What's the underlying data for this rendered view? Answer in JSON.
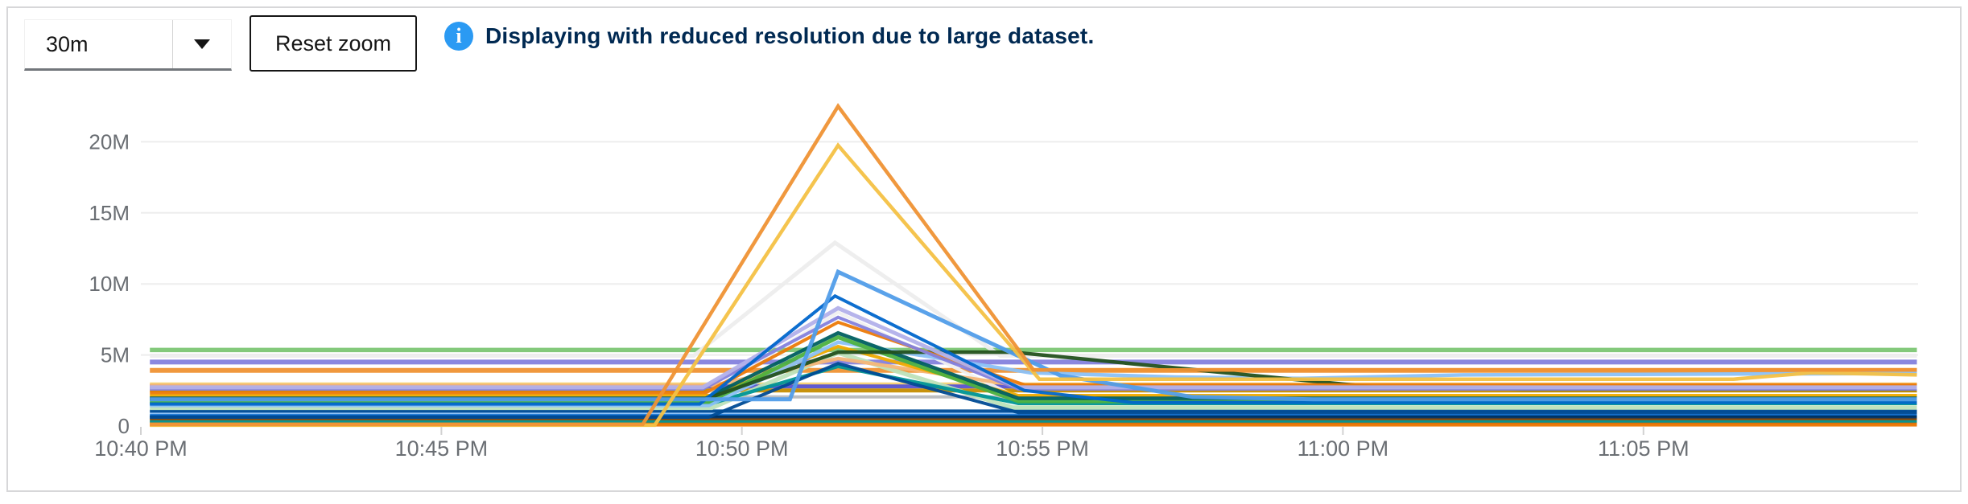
{
  "toolbar": {
    "duration_select": {
      "value": "30m"
    },
    "reset_zoom_label": "Reset zoom",
    "info_message": "Displaying with reduced resolution due to large dataset.",
    "info_icon_glyph": "i"
  },
  "colors": {
    "accent_info_icon": "#2B9AF3",
    "info_text": "#002952",
    "axis_label": "#6A6E73",
    "gridline": "#EDEDED",
    "tick": "#D2D2D2",
    "card_border": "#D7D7D9"
  },
  "chart_data": {
    "type": "line",
    "title": "",
    "xlabel": "",
    "ylabel": "",
    "legend": "none",
    "grid": "horizontal",
    "x_unit": "minutes after 10:40 PM",
    "y_unit": "millions",
    "xlim": [
      0,
      29.57
    ],
    "ylim": [
      0,
      23.7
    ],
    "x_tick_labels": [
      "10:40 PM",
      "10:45 PM",
      "10:50 PM",
      "10:55 PM",
      "11:00 PM",
      "11:05 PM"
    ],
    "x_tick_minutes": [
      0,
      5,
      10,
      15,
      20,
      25
    ],
    "y_tick_labels": [
      "0",
      "5M",
      "10M",
      "15M",
      "20M"
    ],
    "y_tick_values": [
      0,
      5,
      10,
      15,
      20
    ],
    "peak_time_minutes": 11.6,
    "series": [
      {
        "name": "flat-steel-blue",
        "color": "#8BC1F7",
        "width": 7,
        "points": [
          [
            0.15,
            0.95
          ],
          [
            29.55,
            0.95
          ]
        ]
      },
      {
        "name": "flat-brown",
        "color": "#C46100",
        "width": 6,
        "points": [
          [
            0.15,
            0.2
          ],
          [
            29.55,
            0.2
          ]
        ]
      },
      {
        "name": "flat-light-green",
        "color": "#7CC674",
        "width": 5.5,
        "points": [
          [
            0.15,
            5.35
          ],
          [
            29.55,
            5.35
          ]
        ]
      },
      {
        "name": "flat-periwinkle",
        "color": "#8481DD",
        "width": 6,
        "points": [
          [
            0.15,
            4.5
          ],
          [
            29.55,
            4.5
          ]
        ]
      },
      {
        "name": "flat-orange",
        "color": "#EF9234",
        "width": 6,
        "points": [
          [
            0.15,
            3.92
          ],
          [
            29.55,
            3.92
          ]
        ]
      },
      {
        "name": "flat-khaki",
        "color": "#F6D173",
        "width": 4,
        "points": [
          [
            0.15,
            2.95
          ],
          [
            29.55,
            2.95
          ]
        ]
      },
      {
        "name": "flat-slate-purple",
        "color": "#5752D1",
        "width": 5,
        "points": [
          [
            0.15,
            2.78
          ],
          [
            29.55,
            2.78
          ]
        ]
      },
      {
        "name": "flat-olive-gold",
        "color": "#C58C00",
        "width": 5,
        "points": [
          [
            0.15,
            2.5
          ],
          [
            29.55,
            2.5
          ]
        ]
      },
      {
        "name": "flat-gray",
        "color": "#B8BBBE",
        "width": 4,
        "points": [
          [
            0.15,
            2.05
          ],
          [
            29.55,
            2.05
          ]
        ]
      },
      {
        "name": "flat-dark-blue",
        "color": "#004B95",
        "width": 4,
        "points": [
          [
            0.15,
            1.05
          ],
          [
            29.55,
            1.05
          ]
        ]
      },
      {
        "name": "flat-blue",
        "color": "#0066CC",
        "width": 4,
        "points": [
          [
            0.15,
            0.72
          ],
          [
            29.55,
            0.72
          ]
        ]
      },
      {
        "name": "flat-navy",
        "color": "#002F5D",
        "width": 5,
        "points": [
          [
            0.15,
            0.6
          ],
          [
            29.55,
            0.6
          ]
        ]
      },
      {
        "name": "flat-dark-olive",
        "color": "#8F4700",
        "width": 3,
        "points": [
          [
            0.15,
            0.45
          ],
          [
            29.55,
            0.45
          ]
        ]
      },
      {
        "name": "flat-teal",
        "color": "#009596",
        "width": 3,
        "points": [
          [
            0.15,
            0.33
          ],
          [
            29.55,
            0.33
          ]
        ]
      },
      {
        "name": "flat-dark-orange",
        "color": "#EC7A08",
        "width": 4,
        "points": [
          [
            0.15,
            0.08
          ],
          [
            29.55,
            0.08
          ]
        ]
      },
      {
        "name": "gray-spike-low",
        "color": "#F0F0F0",
        "width": 4,
        "points": [
          [
            0.15,
            2.0
          ],
          [
            9.3,
            2.0
          ],
          [
            11.6,
            8.0
          ],
          [
            14.6,
            2.0
          ],
          [
            29.55,
            2.0
          ]
        ]
      },
      {
        "name": "gray-spike",
        "color": "#EDEDED",
        "width": 5,
        "points": [
          [
            0.15,
            4.95
          ],
          [
            9.2,
            4.95
          ],
          [
            11.55,
            12.9
          ],
          [
            14.3,
            4.95
          ],
          [
            29.55,
            4.95
          ]
        ]
      },
      {
        "name": "mint-spike",
        "color": "#BDE2B9",
        "width": 5.5,
        "points": [
          [
            0.15,
            1.28
          ],
          [
            9.5,
            1.28
          ],
          [
            11.6,
            5.15
          ],
          [
            14.5,
            1.3
          ],
          [
            29.55,
            1.3
          ]
        ]
      },
      {
        "name": "tan-spike",
        "color": "#F4B678",
        "width": 4.5,
        "points": [
          [
            0.15,
            2.85
          ],
          [
            9.5,
            2.85
          ],
          [
            11.6,
            4.75
          ],
          [
            14.6,
            2.85
          ],
          [
            29.55,
            2.85
          ]
        ]
      },
      {
        "name": "teal-spike",
        "color": "#009596",
        "width": 4.5,
        "points": [
          [
            0.15,
            1.6
          ],
          [
            9.5,
            1.6
          ],
          [
            11.6,
            4.2
          ],
          [
            14.6,
            1.6
          ],
          [
            29.55,
            1.6
          ]
        ]
      },
      {
        "name": "navy-spike",
        "color": "#004B95",
        "width": 4,
        "points": [
          [
            0.15,
            0.62
          ],
          [
            9.45,
            0.62
          ],
          [
            11.6,
            4.4
          ],
          [
            14.6,
            0.95
          ],
          [
            29.55,
            0.95
          ]
        ]
      },
      {
        "name": "gold-spike-low",
        "color": "#F0AB00",
        "width": 4,
        "points": [
          [
            0.15,
            2.15
          ],
          [
            9.5,
            2.15
          ],
          [
            11.6,
            5.6
          ],
          [
            14.6,
            2.15
          ],
          [
            29.55,
            2.15
          ]
        ]
      },
      {
        "name": "pale-blue-spike",
        "color": "#8BC1F7",
        "width": 4.5,
        "points": [
          [
            0.15,
            1.45
          ],
          [
            9.45,
            1.45
          ],
          [
            11.6,
            5.9
          ],
          [
            14.8,
            3.75
          ],
          [
            17.2,
            3.45
          ],
          [
            19.3,
            3.35
          ],
          [
            22,
            3.6
          ],
          [
            29.55,
            3.7
          ]
        ]
      },
      {
        "name": "green-spike",
        "color": "#4CB140",
        "width": 5,
        "points": [
          [
            0.15,
            1.7
          ],
          [
            9.45,
            1.7
          ],
          [
            11.6,
            6.25
          ],
          [
            14.6,
            1.75
          ],
          [
            29.55,
            1.75
          ]
        ]
      },
      {
        "name": "dark-teal-spike",
        "color": "#005F60",
        "width": 4.5,
        "points": [
          [
            0.15,
            1.95
          ],
          [
            9.4,
            1.95
          ],
          [
            11.6,
            6.55
          ],
          [
            14.6,
            1.95
          ],
          [
            29.55,
            1.95
          ]
        ]
      },
      {
        "name": "dark-green-spike",
        "color": "#23511E",
        "width": 4.5,
        "points": [
          [
            0.15,
            1.9
          ],
          [
            9.4,
            1.9
          ],
          [
            11.6,
            5.2
          ],
          [
            14.5,
            5.2
          ],
          [
            20.5,
            2.75
          ],
          [
            23,
            2.6
          ],
          [
            29.55,
            2.6
          ]
        ]
      },
      {
        "name": "orange-spike-mid",
        "color": "#EC7A08",
        "width": 4,
        "points": [
          [
            0.15,
            2.35
          ],
          [
            9.4,
            2.35
          ],
          [
            11.6,
            7.3
          ],
          [
            14.7,
            2.9
          ],
          [
            29.55,
            2.9
          ]
        ]
      },
      {
        "name": "purple-spike",
        "color": "#8481DD",
        "width": 4,
        "points": [
          [
            0.15,
            2.6
          ],
          [
            9.35,
            2.6
          ],
          [
            11.6,
            7.65
          ],
          [
            14.6,
            2.6
          ],
          [
            29.55,
            2.6
          ]
        ]
      },
      {
        "name": "lavender-spike",
        "color": "#B2B0EA",
        "width": 5,
        "points": [
          [
            0.15,
            2.72
          ],
          [
            9.35,
            2.72
          ],
          [
            11.6,
            8.3
          ],
          [
            14.6,
            2.72
          ],
          [
            29.55,
            2.72
          ]
        ]
      },
      {
        "name": "blue-spike",
        "color": "#0066CC",
        "width": 4,
        "points": [
          [
            0.15,
            1.55
          ],
          [
            9.3,
            1.55
          ],
          [
            11.55,
            9.15
          ],
          [
            14.7,
            2.5
          ],
          [
            16.5,
            1.65
          ],
          [
            29.55,
            1.65
          ]
        ]
      },
      {
        "name": "blue-spike-high",
        "color": "#519DE9",
        "width": 5,
        "points": [
          [
            0.15,
            1.88
          ],
          [
            10.8,
            1.88
          ],
          [
            11.6,
            10.85
          ],
          [
            15.3,
            3.55
          ],
          [
            17.5,
            2.05
          ],
          [
            19.5,
            1.88
          ],
          [
            29.55,
            1.88
          ]
        ]
      },
      {
        "name": "gold-spike",
        "color": "#F4C145",
        "width": 4.5,
        "points": [
          [
            0.15,
            0.06
          ],
          [
            8.55,
            0.06
          ],
          [
            11.6,
            19.75
          ],
          [
            14.95,
            3.3
          ],
          [
            26.5,
            3.3
          ],
          [
            27.8,
            3.75
          ],
          [
            29.55,
            3.6
          ]
        ]
      },
      {
        "name": "orange-spike",
        "color": "#EF9234",
        "width": 4.5,
        "points": [
          [
            0.15,
            0.12
          ],
          [
            8.35,
            0.12
          ],
          [
            11.6,
            22.5
          ],
          [
            14.85,
            3.95
          ],
          [
            29.55,
            3.95
          ]
        ]
      }
    ]
  }
}
